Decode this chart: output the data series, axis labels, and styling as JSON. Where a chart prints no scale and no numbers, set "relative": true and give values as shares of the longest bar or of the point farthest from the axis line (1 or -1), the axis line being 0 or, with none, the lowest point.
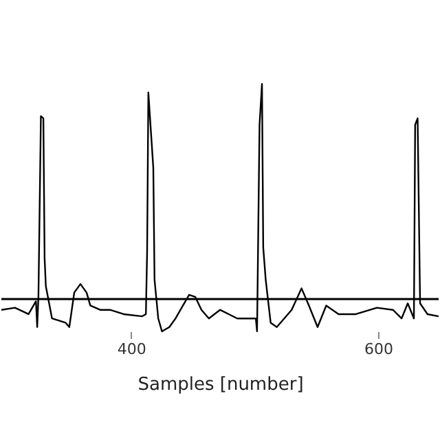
{
  "chart_data": {
    "type": "line",
    "xlabel": "Samples [number]",
    "relative": true,
    "xlim": [
      295,
      649
    ],
    "xticks": [
      400,
      600
    ],
    "grid": false,
    "marker": "none",
    "line_style": "solid",
    "ref_lines": [
      {
        "axis": "y",
        "value": 0,
        "color": "#000000"
      }
    ],
    "series": [
      {
        "color": "#000000",
        "x": [
          295,
          306,
          317,
          323,
          324,
          325,
          327,
          329,
          330,
          331,
          336,
          347,
          350,
          354,
          359,
          364,
          367,
          375,
          383,
          394,
          409,
          412,
          413,
          414,
          418,
          419,
          422,
          425,
          431,
          436,
          442,
          447,
          452,
          457,
          463,
          472,
          486,
          501,
          502,
          504,
          506,
          507,
          509,
          513,
          518,
          524,
          530,
          538,
          544,
          551,
          558,
          568,
          582,
          599,
          612,
          619,
          624,
          629,
          630,
          632,
          634,
          640,
          649
        ],
        "values": [
          -0.05,
          -0.04,
          -0.07,
          -0.01,
          -0.13,
          0.01,
          0.85,
          0.84,
          0.19,
          0.06,
          -0.09,
          -0.11,
          -0.13,
          0.03,
          0.07,
          0.03,
          -0.03,
          -0.05,
          -0.05,
          -0.07,
          -0.08,
          -0.07,
          0.22,
          0.96,
          0.61,
          0.09,
          -0.09,
          -0.15,
          -0.13,
          -0.09,
          -0.03,
          0.02,
          0.01,
          -0.05,
          -0.09,
          -0.05,
          -0.09,
          -0.09,
          -0.15,
          0.81,
          1.0,
          0.24,
          0.09,
          -0.11,
          -0.13,
          -0.09,
          -0.05,
          0.05,
          -0.03,
          -0.13,
          -0.03,
          -0.07,
          -0.07,
          -0.04,
          -0.05,
          -0.09,
          -0.02,
          -0.09,
          0.81,
          0.84,
          -0.02,
          -0.07,
          -0.08
        ]
      }
    ]
  }
}
